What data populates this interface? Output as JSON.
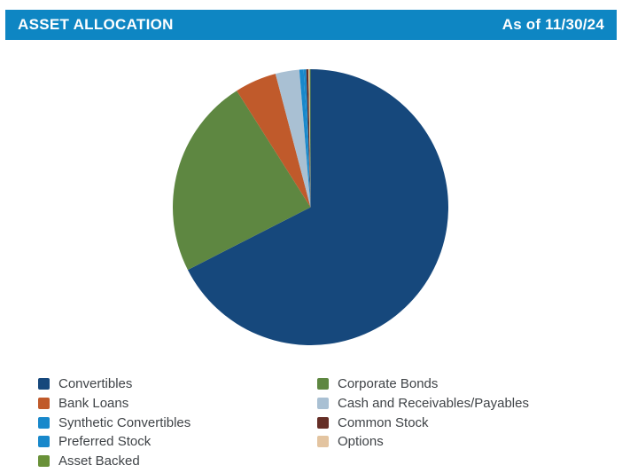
{
  "header": {
    "title": "ASSET ALLOCATION",
    "as_of": "As of 11/30/24",
    "bg_color": "#0E86C3",
    "text_color": "#FFFFFF"
  },
  "chart_data": {
    "type": "pie",
    "title": "ASSET ALLOCATION",
    "as_of": "As of 11/30/24",
    "start_angle_deg": 0,
    "direction": "clockwise",
    "values_unit": "percent",
    "slices": [
      {
        "label": "Convertibles",
        "value": 67.5,
        "color": "#16487C"
      },
      {
        "label": "Corporate Bonds",
        "value": 23.5,
        "color": "#5E8741"
      },
      {
        "label": "Bank Loans",
        "value": 4.9,
        "color": "#C05A2B"
      },
      {
        "label": "Cash and Receivables/Payables",
        "value": 2.8,
        "color": "#A9C0D3"
      },
      {
        "label": "Synthetic Convertibles",
        "value": 0.5,
        "color": "#1888CB"
      },
      {
        "label": "Preferred Stock",
        "value": 0.3,
        "color": "#1888CB"
      },
      {
        "label": "Common Stock",
        "value": 0.25,
        "color": "#652E26"
      },
      {
        "label": "Options",
        "value": 0.15,
        "color": "#E3C4A0"
      },
      {
        "label": "Asset Backed",
        "value": 0.1,
        "color": "#699138"
      }
    ],
    "legend": {
      "position": "bottom",
      "column_slice_indexes": {
        "left": [
          0,
          2,
          4,
          5,
          8
        ],
        "right": [
          1,
          3,
          6,
          7
        ]
      }
    }
  },
  "legend_text_color": "#3F4347"
}
